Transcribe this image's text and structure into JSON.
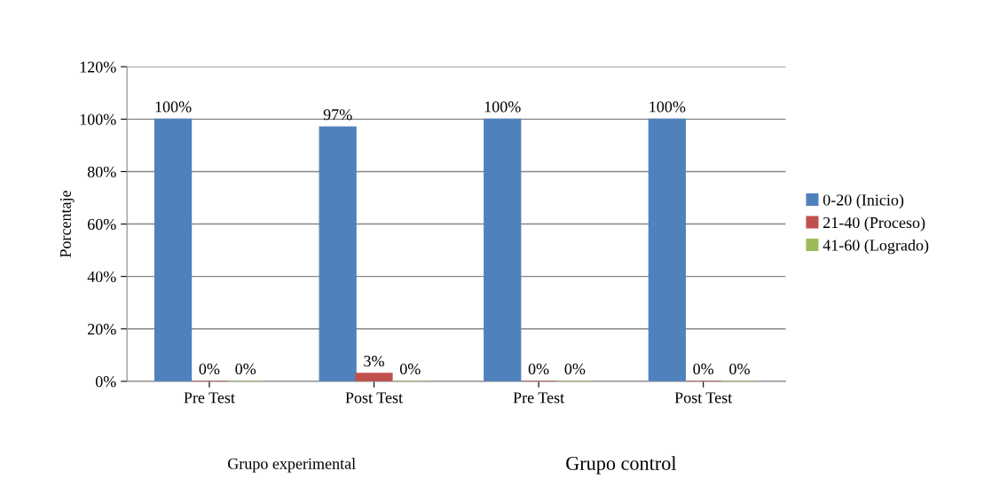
{
  "chart_data": {
    "type": "bar",
    "ylabel": "Porcentaje",
    "categories": [
      "Pre Test",
      "Post Test",
      "Pre Test",
      "Post Test"
    ],
    "series": [
      {
        "name": "0-20 (Inicio)",
        "color": "#4f81bd",
        "values": [
          100,
          97,
          100,
          100
        ],
        "value_labels": [
          "100%",
          "97%",
          "100%",
          "100%"
        ]
      },
      {
        "name": "21-40 (Proceso)",
        "color": "#c0504d",
        "values": [
          0,
          3,
          0,
          0
        ],
        "value_labels": [
          "0%",
          "3%",
          "0%",
          "0%"
        ]
      },
      {
        "name": "41-60 (Logrado)",
        "color": "#9bbb59",
        "values": [
          0,
          0,
          0,
          0
        ],
        "value_labels": [
          "0%",
          "0%",
          "0%",
          "0%"
        ]
      }
    ],
    "ylim": [
      0,
      120
    ],
    "yticks": [
      {
        "value": 0,
        "label": "0%"
      },
      {
        "value": 20,
        "label": "20%"
      },
      {
        "value": 40,
        "label": "40%"
      },
      {
        "value": 60,
        "label": "60%"
      },
      {
        "value": 80,
        "label": "80%"
      },
      {
        "value": 100,
        "label": "100%"
      },
      {
        "value": 120,
        "label": "120%"
      }
    ],
    "grid": "y",
    "legend": "right",
    "annotations": [
      "Grupo experimental",
      "Grupo control"
    ]
  }
}
